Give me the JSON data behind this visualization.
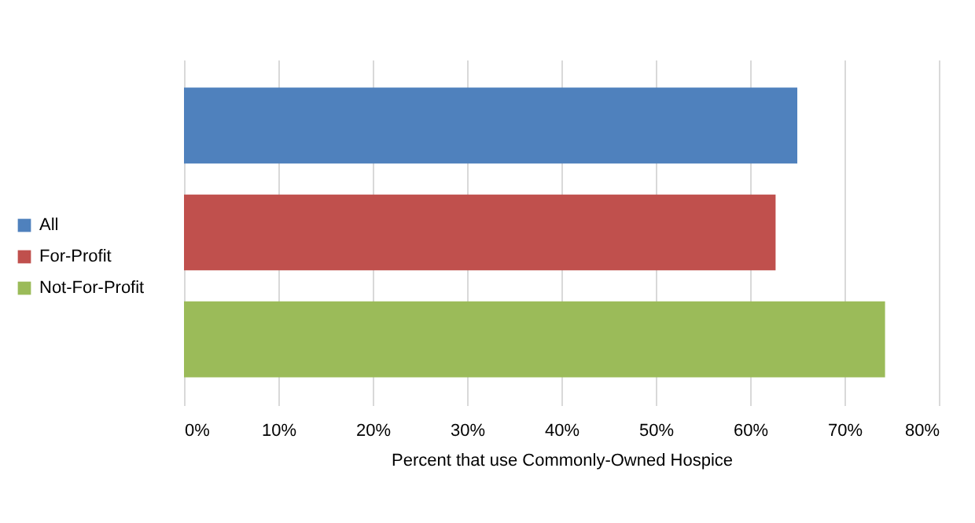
{
  "chart_data": {
    "type": "bar",
    "orientation": "horizontal",
    "xlabel": "Percent that use Commonly-Owned Hospice",
    "categories": [
      null
    ],
    "series": [
      {
        "name": "All",
        "color": "#4f81bd",
        "values": [
          65
        ]
      },
      {
        "name": "For-Profit",
        "color": "#c0504d",
        "values": [
          62.7
        ]
      },
      {
        "name": "Not-For-Profit",
        "color": "#9bbb59",
        "values": [
          74.3
        ]
      }
    ],
    "xlim": [
      0,
      80
    ],
    "xticks": [
      {
        "value": 0,
        "label": "0%"
      },
      {
        "value": 10,
        "label": "10%"
      },
      {
        "value": 20,
        "label": "20%"
      },
      {
        "value": 30,
        "label": "30%"
      },
      {
        "value": 40,
        "label": "40%"
      },
      {
        "value": 50,
        "label": "50%"
      },
      {
        "value": 60,
        "label": "60%"
      },
      {
        "value": 70,
        "label": "70%"
      },
      {
        "value": 80,
        "label": "80%"
      }
    ],
    "grid": "x",
    "legend": "left"
  }
}
